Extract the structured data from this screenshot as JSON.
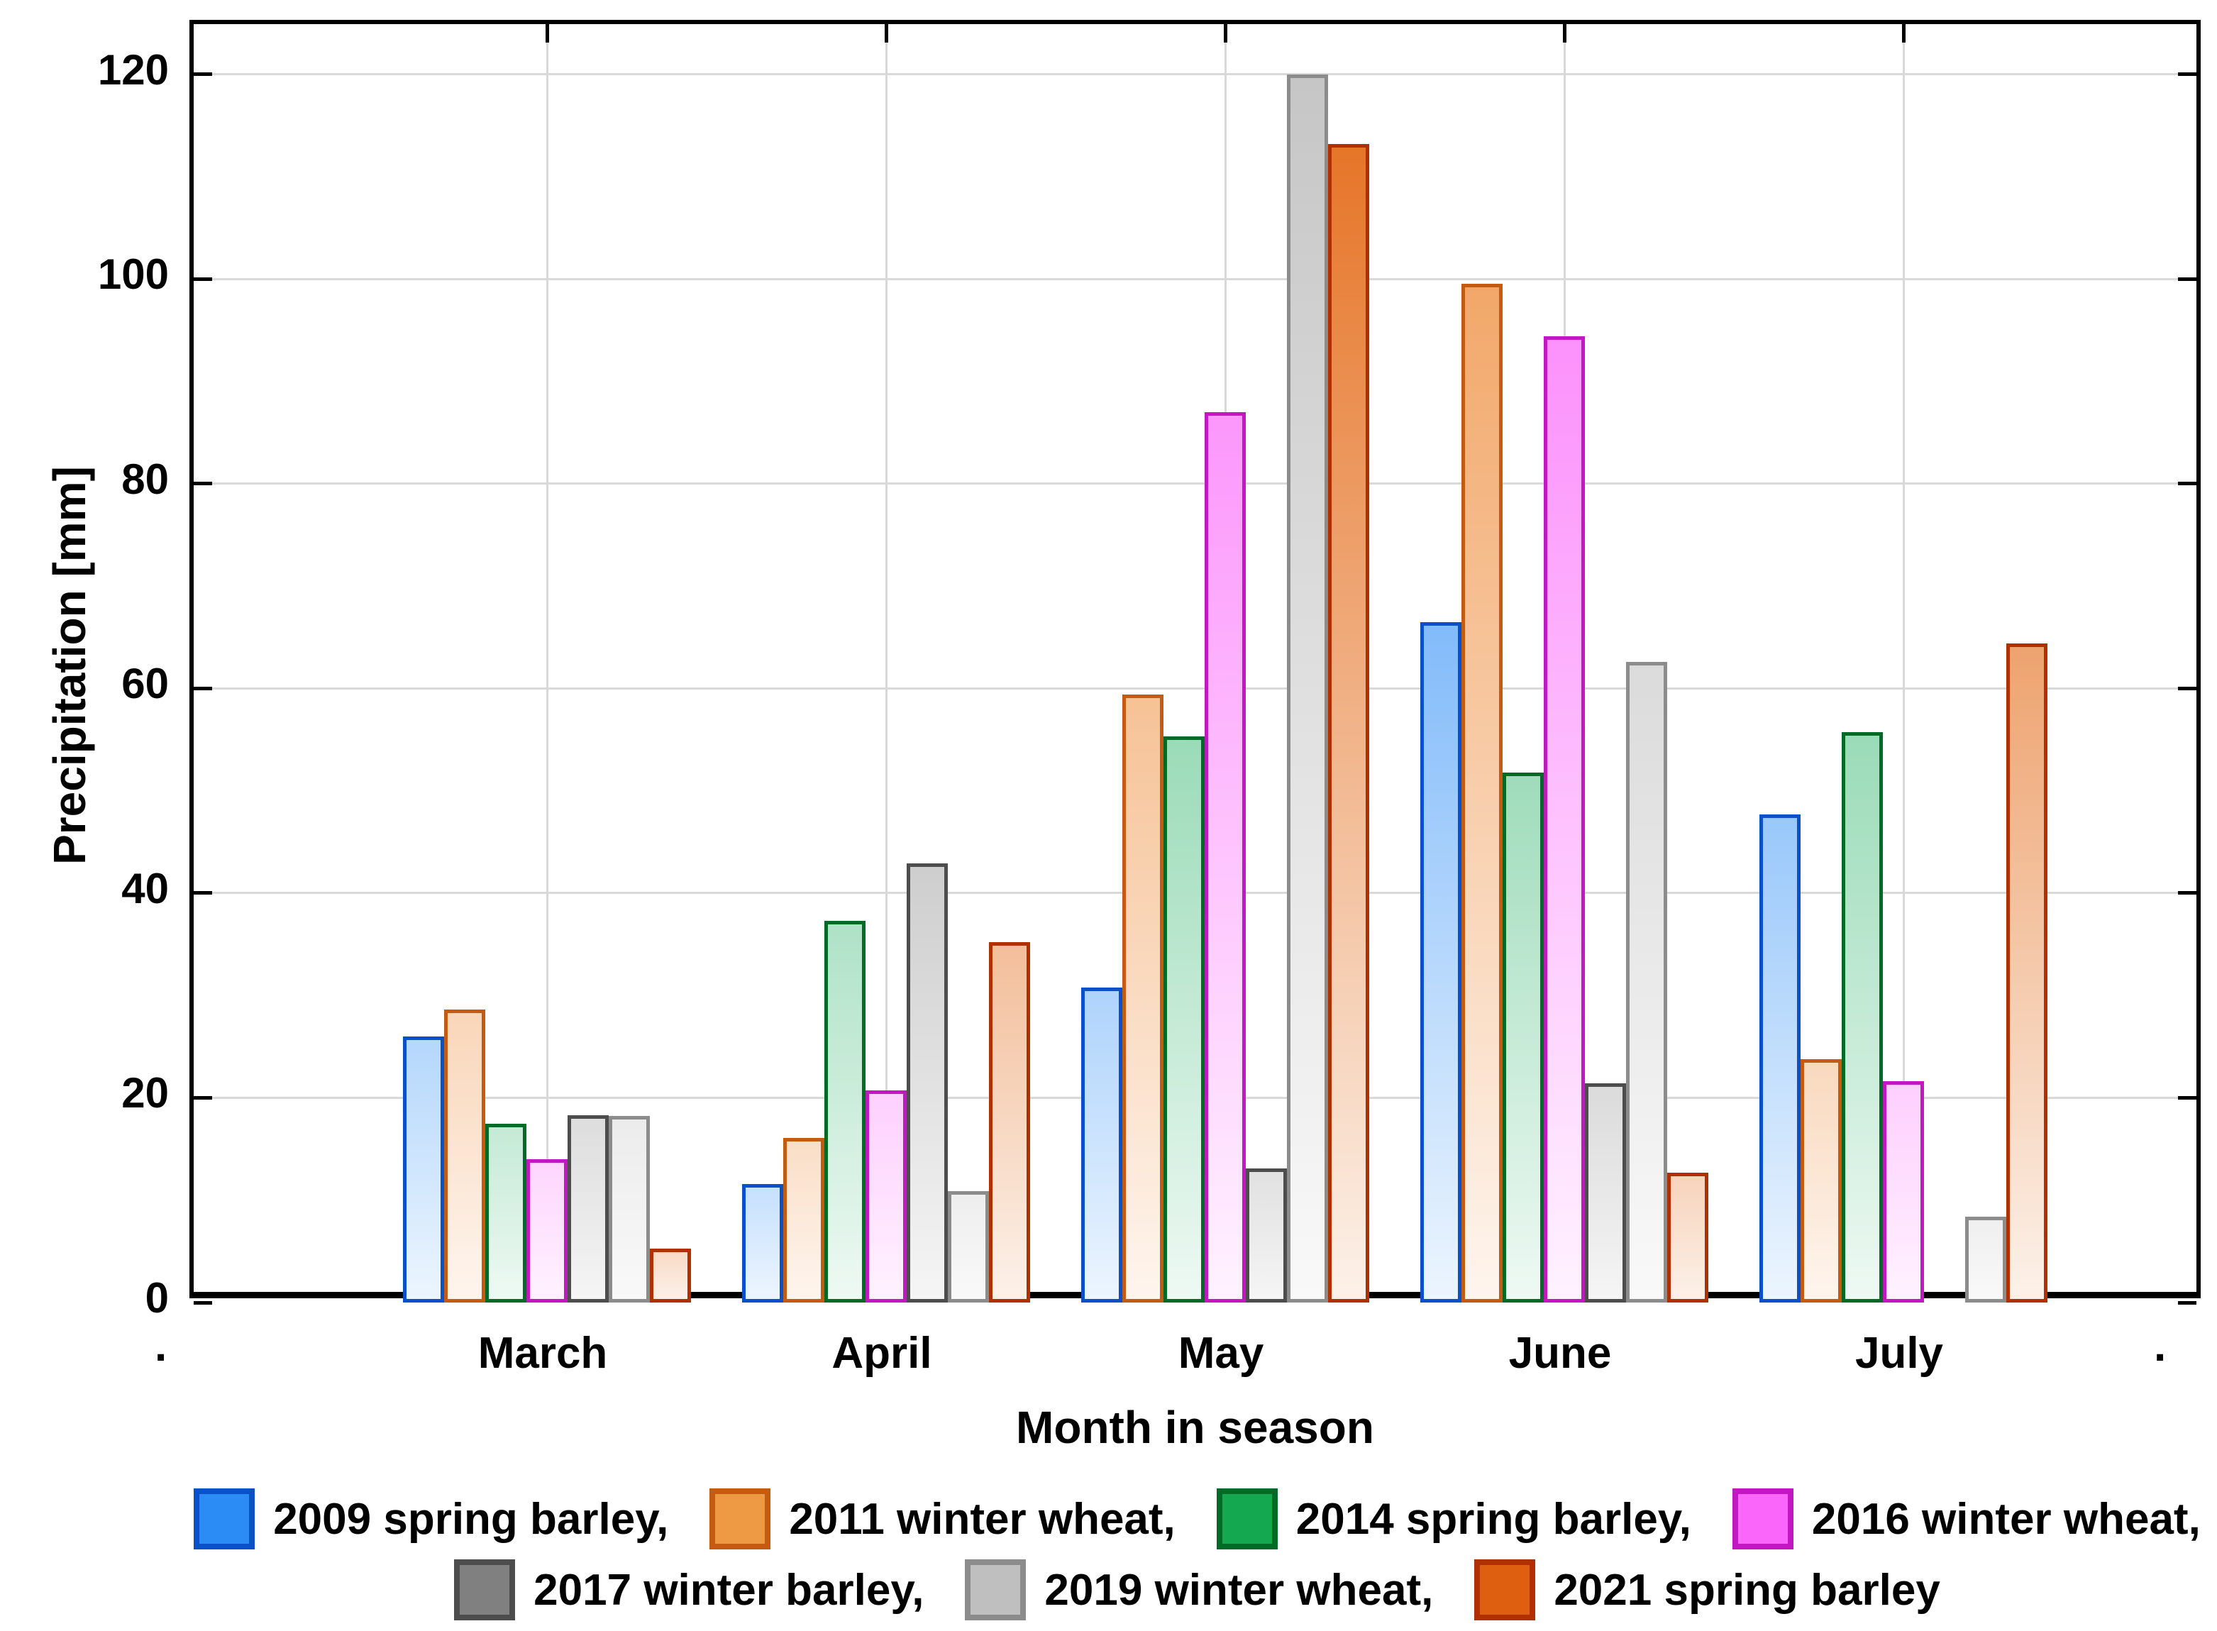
{
  "chart_data": {
    "type": "bar",
    "title": "",
    "xlabel": "Month in season",
    "ylabel": "Precipitation [mm]",
    "categories": [
      "March",
      "April",
      "May",
      "June",
      "July"
    ],
    "yticks": [
      0,
      20,
      40,
      60,
      80,
      100,
      120
    ],
    "ylim": [
      0,
      124.9
    ],
    "grid": "on",
    "legend_position": "bottom",
    "edge_dots": [
      ".",
      "."
    ],
    "series": [
      {
        "name": "2009 spring barley",
        "legend_label": "2009 spring barley,",
        "outline": "#0a50c8",
        "fill": "#3f97f7",
        "legend_fill": "#2a8cf4",
        "values": [
          26.0,
          11.6,
          30.8,
          66.5,
          47.7
        ]
      },
      {
        "name": "2011 winter wheat",
        "legend_label": "2011 winter wheat,",
        "outline": "#c55a11",
        "fill": "#f09a52",
        "legend_fill": "#ee9a44",
        "values": [
          28.6,
          16.1,
          59.4,
          99.5,
          23.8
        ]
      },
      {
        "name": "2014 spring barley",
        "legend_label": "2014 spring barley,",
        "outline": "#006b24",
        "fill": "#52c185",
        "legend_fill": "#14a850",
        "values": [
          17.5,
          37.3,
          55.3,
          51.8,
          55.7
        ]
      },
      {
        "name": "2016 winter wheat",
        "legend_label": "2016 winter wheat,",
        "outline": "#c217c2",
        "fill": "#fb7bfb",
        "legend_fill": "#f966f9",
        "values": [
          14.0,
          20.7,
          87.0,
          94.4,
          21.6
        ]
      },
      {
        "name": "2017 winter barley",
        "legend_label": "2017 winter barley,",
        "outline": "#4d4d4d",
        "fill": "#9c9c9c",
        "legend_fill": "#808080",
        "values": [
          18.3,
          42.9,
          13.1,
          21.4,
          null
        ]
      },
      {
        "name": "2019 winter wheat",
        "legend_label": "2019 winter wheat,",
        "outline": "#8c8c8c",
        "fill": "#c6c6c6",
        "legend_fill": "#bfbfbf",
        "values": [
          18.2,
          10.9,
          120.0,
          62.6,
          8.4
        ]
      },
      {
        "name": "2021 spring barley",
        "legend_label": "2021 spring barley",
        "outline": "#b03000",
        "fill": "#e56f1e",
        "legend_fill": "#de5f10",
        "values": [
          5.3,
          35.2,
          113.2,
          12.7,
          64.4
        ]
      }
    ]
  }
}
